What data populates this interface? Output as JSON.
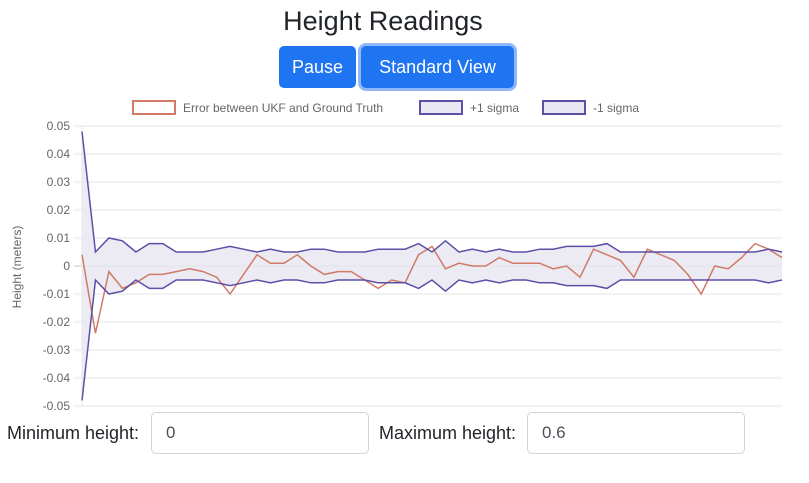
{
  "title": "Height Readings",
  "buttons": {
    "pause_label": "Pause",
    "standard_view_label": "Standard View"
  },
  "legend": [
    {
      "label": "Error between UKF and Ground Truth",
      "stroke": "#d07a67",
      "fill": "#ffffff"
    },
    {
      "label": "+1 sigma",
      "stroke": "#5b4fa6",
      "fill": "#e9e8f2"
    },
    {
      "label": "-1 sigma",
      "stroke": "#5b4fa6",
      "fill": "#e9e8f2"
    }
  ],
  "controls": {
    "min_label": "Minimum height:",
    "min_value": "0",
    "max_label": "Maximum height:",
    "max_value": "0.6"
  },
  "chart_data": {
    "type": "line",
    "ylabel": "Height (meters)",
    "xlabel": "",
    "ylim": [
      -0.05,
      0.05
    ],
    "yticks": [
      "0.05",
      "0.04",
      "0.03",
      "0.02",
      "0.01",
      "0",
      "-0.01",
      "-0.02",
      "-0.03",
      "-0.04",
      "-0.05"
    ],
    "grid": true,
    "legend_position": "top",
    "n_points": 53,
    "series": [
      {
        "name": "Error between UKF and Ground Truth",
        "color": "#d07a67",
        "values": [
          0.004,
          -0.024,
          -0.002,
          -0.008,
          -0.006,
          -0.003,
          -0.003,
          -0.002,
          -0.001,
          -0.002,
          -0.004,
          -0.01,
          -0.003,
          0.004,
          0.001,
          0.001,
          0.004,
          0.0,
          -0.003,
          -0.002,
          -0.002,
          -0.005,
          -0.008,
          -0.005,
          -0.006,
          0.004,
          0.007,
          -0.001,
          0.001,
          0.0,
          0.0,
          0.003,
          0.001,
          0.001,
          0.001,
          -0.001,
          0.0,
          -0.004,
          0.006,
          0.004,
          0.002,
          -0.004,
          0.006,
          0.004,
          0.002,
          -0.003,
          -0.01,
          0.0,
          -0.001,
          0.003,
          0.008,
          0.006,
          0.003
        ]
      },
      {
        "name": "+1 sigma",
        "color": "#5b4fa6",
        "values": [
          0.048,
          0.005,
          0.01,
          0.009,
          0.005,
          0.008,
          0.008,
          0.005,
          0.005,
          0.005,
          0.006,
          0.007,
          0.006,
          0.005,
          0.006,
          0.005,
          0.005,
          0.006,
          0.006,
          0.005,
          0.005,
          0.005,
          0.006,
          0.006,
          0.006,
          0.008,
          0.005,
          0.009,
          0.005,
          0.006,
          0.005,
          0.006,
          0.005,
          0.005,
          0.006,
          0.006,
          0.007,
          0.007,
          0.007,
          0.008,
          0.005,
          0.005,
          0.005,
          0.005,
          0.005,
          0.005,
          0.005,
          0.005,
          0.005,
          0.005,
          0.005,
          0.006,
          0.005
        ]
      },
      {
        "name": "-1 sigma",
        "color": "#5b4fa6",
        "values": [
          -0.048,
          -0.005,
          -0.01,
          -0.009,
          -0.005,
          -0.008,
          -0.008,
          -0.005,
          -0.005,
          -0.005,
          -0.006,
          -0.007,
          -0.006,
          -0.005,
          -0.006,
          -0.005,
          -0.005,
          -0.006,
          -0.006,
          -0.005,
          -0.005,
          -0.005,
          -0.006,
          -0.006,
          -0.006,
          -0.008,
          -0.005,
          -0.009,
          -0.005,
          -0.006,
          -0.005,
          -0.006,
          -0.005,
          -0.005,
          -0.006,
          -0.006,
          -0.007,
          -0.007,
          -0.007,
          -0.008,
          -0.005,
          -0.005,
          -0.005,
          -0.005,
          -0.005,
          -0.005,
          -0.005,
          -0.005,
          -0.005,
          -0.005,
          -0.005,
          -0.006,
          -0.005
        ]
      }
    ]
  }
}
